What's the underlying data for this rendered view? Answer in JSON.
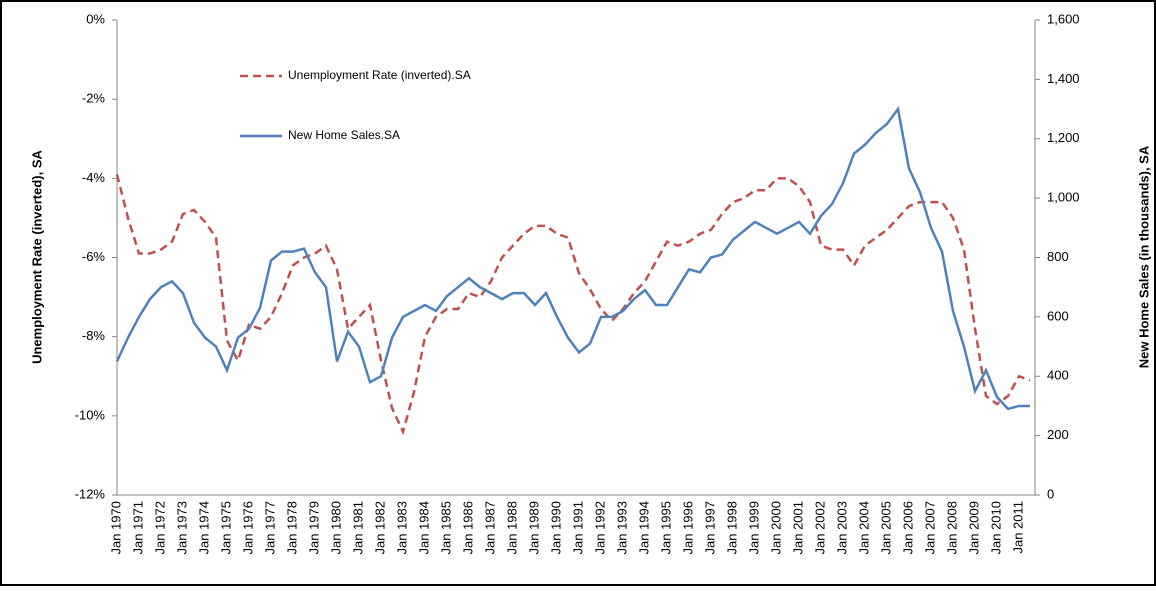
{
  "chart_data": {
    "type": "line",
    "y_label": "Unemployment Rate (inverted), SA",
    "y2_label": "New Home Sales (in thousands), SA",
    "categories": [
      "Jan 1970",
      null,
      "Jan 1971",
      null,
      "Jan 1972",
      null,
      "Jan 1973",
      null,
      "Jan 1974",
      null,
      "Jan 1975",
      null,
      "Jan 1976",
      null,
      "Jan 1977",
      null,
      "Jan 1978",
      null,
      "Jan 1979",
      null,
      "Jan 1980",
      null,
      "Jan 1981",
      null,
      "Jan 1982",
      null,
      "Jan 1983",
      null,
      "Jan 1984",
      null,
      "Jan 1985",
      null,
      "Jan 1986",
      null,
      "Jan 1987",
      null,
      "Jan 1988",
      null,
      "Jan 1989",
      null,
      "Jan 1990",
      null,
      "Jan 1991",
      null,
      "Jan 1992",
      null,
      "Jan 1993",
      null,
      "Jan 1994",
      null,
      "Jan 1995",
      null,
      "Jan 1996",
      null,
      "Jan 1997",
      null,
      "Jan 1998",
      null,
      "Jan 1999",
      null,
      "Jan 2000",
      null,
      "Jan 2001",
      null,
      "Jan 2002",
      null,
      "Jan 2003",
      null,
      "Jan 2004",
      null,
      "Jan 2005",
      null,
      "Jan 2006",
      null,
      "Jan 2007",
      null,
      "Jan 2008",
      null,
      "Jan 2009",
      null,
      "Jan 2010",
      null,
      "Jan 2011",
      null
    ],
    "series": [
      {
        "name": "Unemployment Rate (inverted).SA",
        "color": "#c0504d",
        "dashed": true,
        "values": [
          -3.9,
          -5.0,
          -5.9,
          -5.9,
          -5.8,
          -5.6,
          -4.9,
          -4.8,
          -5.1,
          -5.5,
          -8.1,
          -8.6,
          -7.7,
          -7.8,
          -7.5,
          -6.9,
          -6.2,
          -6.0,
          -5.9,
          -5.7,
          -6.3,
          -7.8,
          -7.5,
          -7.2,
          -8.6,
          -9.8,
          -10.4,
          -9.4,
          -8.0,
          -7.5,
          -7.3,
          -7.3,
          -6.9,
          -7.0,
          -6.6,
          -6.0,
          -5.7,
          -5.4,
          -5.2,
          -5.2,
          -5.4,
          -5.5,
          -6.4,
          -6.8,
          -7.3,
          -7.6,
          -7.3,
          -6.9,
          -6.6,
          -6.1,
          -5.6,
          -5.7,
          -5.6,
          -5.4,
          -5.3,
          -4.9,
          -4.6,
          -4.5,
          -4.3,
          -4.3,
          -4.0,
          -4.0,
          -4.2,
          -4.6,
          -5.7,
          -5.8,
          -5.8,
          -6.2,
          -5.7,
          -5.5,
          -5.3,
          -5.0,
          -4.7,
          -4.6,
          -4.6,
          -4.6,
          -5.0,
          -5.8,
          -7.8,
          -9.5,
          -9.7,
          -9.5,
          -9.0,
          -9.1
        ]
      },
      {
        "name": "New Home Sales.SA",
        "color": "#4f81bd",
        "axis": "y2",
        "values": [
          450,
          530,
          600,
          660,
          700,
          720,
          680,
          580,
          530,
          500,
          420,
          530,
          560,
          630,
          790,
          820,
          820,
          830,
          750,
          700,
          450,
          550,
          500,
          380,
          400,
          530,
          600,
          620,
          640,
          620,
          670,
          700,
          730,
          700,
          680,
          660,
          680,
          680,
          640,
          680,
          600,
          530,
          480,
          510,
          600,
          600,
          620,
          660,
          690,
          640,
          640,
          700,
          760,
          750,
          800,
          810,
          860,
          890,
          920,
          900,
          880,
          900,
          920,
          880,
          940,
          980,
          1050,
          1150,
          1180,
          1220,
          1250,
          1300,
          1100,
          1020,
          900,
          820,
          620,
          500,
          350,
          420,
          330,
          290,
          300,
          300
        ]
      }
    ],
    "ylim": [
      -12,
      0
    ],
    "yticks": [
      {
        "value": -12,
        "label": "-12%"
      },
      {
        "value": -10,
        "label": "-10%"
      },
      {
        "value": -8,
        "label": "-8%"
      },
      {
        "value": -6,
        "label": "-6%"
      },
      {
        "value": -4,
        "label": "-4%"
      },
      {
        "value": -2,
        "label": "-2%"
      },
      {
        "value": 0,
        "label": "0%"
      }
    ],
    "y2lim": [
      0,
      1600
    ],
    "y2ticks": [
      0,
      200,
      400,
      600,
      800,
      {
        "value": 1000,
        "label": "1,000"
      },
      {
        "value": 1200,
        "label": "1,200"
      },
      {
        "value": 1400,
        "label": "1,400"
      },
      {
        "value": 1600,
        "label": "1,600"
      }
    ]
  }
}
